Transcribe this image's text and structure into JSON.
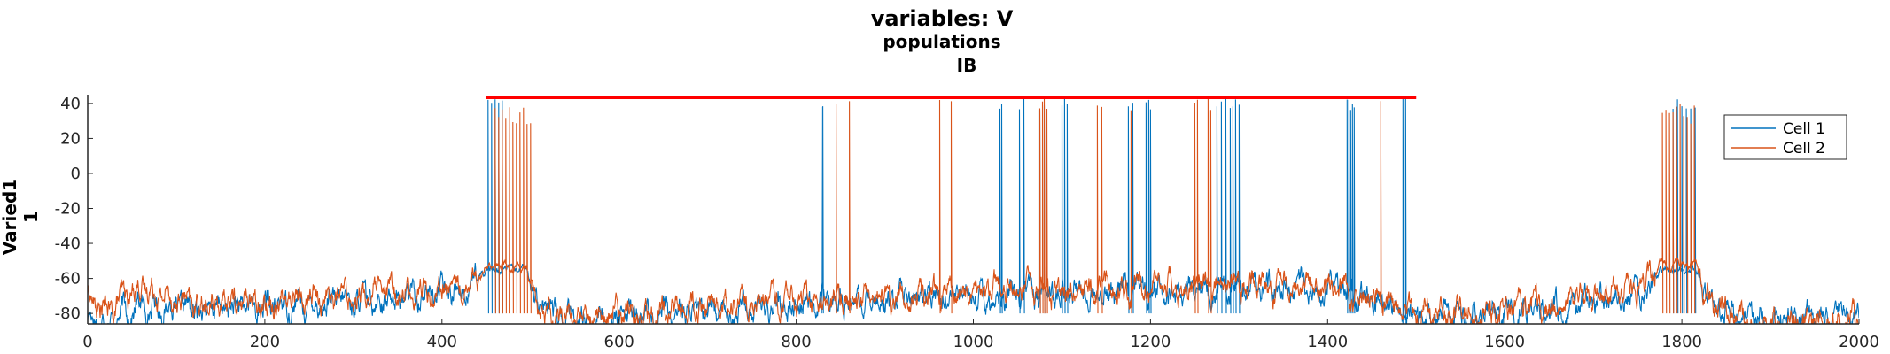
{
  "chart_data": {
    "type": "line",
    "title_lines": [
      "variables: V",
      "populations",
      "IB"
    ],
    "ylabel_lines": [
      "Varied1",
      "1"
    ],
    "xlim": [
      0,
      2000
    ],
    "ylim": [
      -86,
      45
    ],
    "xticks": [
      0,
      200,
      400,
      600,
      800,
      1000,
      1200,
      1400,
      1600,
      1800,
      2000
    ],
    "yticks": [
      -80,
      -60,
      -40,
      -20,
      0,
      20,
      40
    ],
    "grid": false,
    "legend_position": "top-right",
    "series": [
      {
        "name": "Cell 1",
        "color": "#0072BD",
        "baseline": [
          [
            0,
            -82
          ],
          [
            20,
            -84
          ],
          [
            60,
            -76
          ],
          [
            120,
            -78
          ],
          [
            200,
            -76
          ],
          [
            280,
            -74
          ],
          [
            360,
            -70
          ],
          [
            420,
            -66
          ],
          [
            440,
            -60
          ],
          [
            450,
            -55
          ],
          [
            495,
            -55
          ],
          [
            510,
            -75
          ],
          [
            540,
            -85
          ],
          [
            600,
            -82
          ],
          [
            700,
            -78
          ],
          [
            800,
            -75
          ],
          [
            900,
            -74
          ],
          [
            1000,
            -70
          ],
          [
            1100,
            -68
          ],
          [
            1200,
            -66
          ],
          [
            1300,
            -65
          ],
          [
            1400,
            -66
          ],
          [
            1450,
            -74
          ],
          [
            1500,
            -80
          ],
          [
            1600,
            -80
          ],
          [
            1700,
            -76
          ],
          [
            1760,
            -68
          ],
          [
            1775,
            -55
          ],
          [
            1815,
            -55
          ],
          [
            1835,
            -75
          ],
          [
            1880,
            -82
          ],
          [
            2000,
            -84
          ]
        ],
        "spikes": [
          452,
          456,
          460,
          464,
          468,
          828,
          830,
          1030,
          1032,
          1052,
          1057,
          1075,
          1080,
          1100,
          1103,
          1106,
          1175,
          1180,
          1195,
          1198,
          1200,
          1275,
          1280,
          1285,
          1290,
          1293,
          1296,
          1300,
          1422,
          1424,
          1426,
          1428,
          1430,
          1485,
          1488,
          1790,
          1795,
          1800,
          1805,
          1810,
          1815
        ]
      },
      {
        "name": "Cell 2",
        "color": "#D95319",
        "baseline": [
          [
            0,
            -70
          ],
          [
            20,
            -80
          ],
          [
            60,
            -64
          ],
          [
            120,
            -76
          ],
          [
            200,
            -72
          ],
          [
            280,
            -70
          ],
          [
            360,
            -68
          ],
          [
            420,
            -64
          ],
          [
            440,
            -58
          ],
          [
            450,
            -53
          ],
          [
            495,
            -53
          ],
          [
            510,
            -78
          ],
          [
            540,
            -84
          ],
          [
            600,
            -80
          ],
          [
            700,
            -76
          ],
          [
            800,
            -73
          ],
          [
            900,
            -71
          ],
          [
            1000,
            -68
          ],
          [
            1100,
            -66
          ],
          [
            1200,
            -65
          ],
          [
            1300,
            -64
          ],
          [
            1400,
            -65
          ],
          [
            1450,
            -73
          ],
          [
            1500,
            -78
          ],
          [
            1600,
            -78
          ],
          [
            1700,
            -70
          ],
          [
            1760,
            -64
          ],
          [
            1775,
            -52
          ],
          [
            1815,
            -52
          ],
          [
            1835,
            -78
          ],
          [
            1880,
            -84
          ],
          [
            2000,
            -86
          ]
        ],
        "spikes": [
          460,
          464,
          468,
          472,
          476,
          480,
          484,
          488,
          492,
          496,
          500,
          845,
          860,
          962,
          975,
          1075,
          1078,
          1080,
          1083,
          1140,
          1145,
          1178,
          1250,
          1253,
          1265,
          1268,
          1460,
          1778,
          1782,
          1786,
          1790,
          1794,
          1798,
          1802,
          1806,
          1810,
          1814
        ]
      }
    ],
    "annotation_line": {
      "x_start": 450,
      "x_end": 1500,
      "y": 43.5,
      "color": "#FF0000"
    }
  },
  "legend": {
    "entries": [
      "Cell 1",
      "Cell 2"
    ]
  }
}
